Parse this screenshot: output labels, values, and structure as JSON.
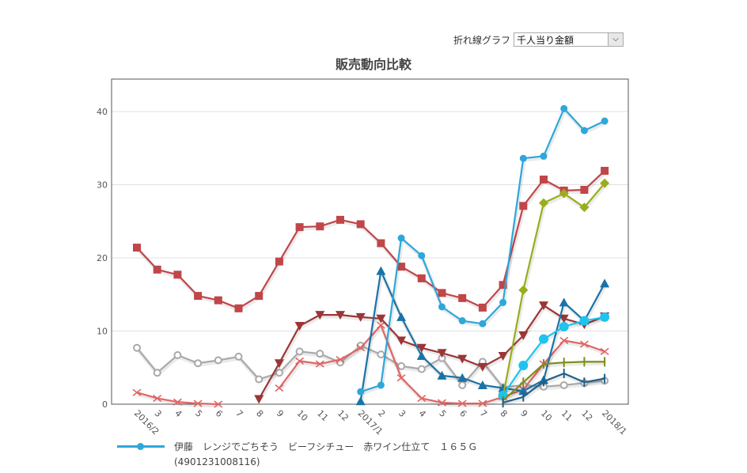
{
  "toolbar": {
    "label": "折れ線グラフ",
    "select_value": "千人当り金額",
    "arrow_icon": "chevron-down-icon"
  },
  "chart_data": {
    "type": "line",
    "title": "販売動向比較",
    "xlabel": "",
    "ylabel": "",
    "ylim": [
      0,
      44
    ],
    "yticks": [
      0,
      10,
      20,
      30,
      40
    ],
    "grid": true,
    "categories": [
      "2016/2",
      "3",
      "4",
      "5",
      "6",
      "7",
      "8",
      "9",
      "10",
      "11",
      "12",
      "2017/1",
      "2",
      "3",
      "4",
      "5",
      "6",
      "7",
      "8",
      "9",
      "10",
      "11",
      "12",
      "2018/1"
    ],
    "series": [
      {
        "name": "s-red-square",
        "color": "#c0464a",
        "marker": "square",
        "values": [
          21.4,
          18.4,
          17.7,
          14.8,
          14.2,
          13.1,
          14.8,
          19.5,
          24.2,
          24.3,
          25.2,
          24.6,
          22.0,
          18.8,
          17.2,
          15.2,
          14.5,
          13.2,
          16.3,
          27.1,
          30.7,
          29.2,
          29.3,
          31.9
        ]
      },
      {
        "name": "s-gray-open-circle",
        "color": "#a9a9a9",
        "marker": "open-circle",
        "values": [
          7.7,
          4.3,
          6.7,
          5.6,
          6.0,
          6.5,
          3.4,
          4.3,
          7.2,
          6.9,
          5.7,
          8.0,
          6.8,
          5.2,
          4.8,
          6.3,
          2.6,
          5.8,
          2.3,
          2.6,
          2.4,
          2.6,
          2.9,
          3.2
        ]
      },
      {
        "name": "s-salmon-x",
        "color": "#e06666",
        "marker": "x",
        "values": [
          1.6,
          0.8,
          0.3,
          0.1,
          0.0,
          null,
          null,
          2.2,
          5.9,
          5.5,
          6.1,
          7.7,
          10.8,
          3.6,
          0.8,
          0.2,
          0.1,
          0.1,
          1.0,
          2.0,
          5.5,
          8.7,
          8.2,
          7.2
        ]
      },
      {
        "name": "s-darkred-triangle-down",
        "color": "#9b3638",
        "marker": "triangle-down",
        "values": [
          null,
          null,
          null,
          null,
          null,
          null,
          0.7,
          5.6,
          10.7,
          12.2,
          12.2,
          11.9,
          11.7,
          8.7,
          7.7,
          7.0,
          6.2,
          5.1,
          6.6,
          9.4,
          13.5,
          11.7,
          10.9,
          12.0
        ]
      },
      {
        "name": "s-darkblue-triangle-up",
        "color": "#1a73a8",
        "marker": "triangle-up",
        "values": [
          null,
          null,
          null,
          null,
          null,
          null,
          null,
          null,
          null,
          null,
          null,
          0.4,
          18.2,
          11.9,
          6.6,
          3.9,
          3.6,
          2.6,
          2.2,
          1.8,
          3.3,
          13.9,
          11.4,
          16.5
        ]
      },
      {
        "name": "s-blue-circle",
        "color": "#2ea7db",
        "marker": "circle",
        "values": [
          null,
          null,
          null,
          null,
          null,
          null,
          null,
          null,
          null,
          null,
          null,
          1.7,
          2.6,
          22.7,
          20.3,
          13.3,
          11.4,
          11.0,
          13.9,
          33.6,
          33.9,
          40.4,
          37.4,
          38.7
        ]
      },
      {
        "name": "s-olive-diamond",
        "color": "#9aad1c",
        "marker": "diamond",
        "values": [
          null,
          null,
          null,
          null,
          null,
          null,
          null,
          null,
          null,
          null,
          null,
          null,
          null,
          null,
          null,
          null,
          null,
          null,
          1.0,
          15.6,
          27.5,
          28.8,
          26.9,
          30.2
        ]
      },
      {
        "name": "s-cyan-big-circle",
        "color": "#1fc3ee",
        "marker": "big-circle",
        "values": [
          null,
          null,
          null,
          null,
          null,
          null,
          null,
          null,
          null,
          null,
          null,
          null,
          null,
          null,
          null,
          null,
          null,
          null,
          1.2,
          5.3,
          8.9,
          10.6,
          11.4,
          11.9
        ]
      },
      {
        "name": "s-olive-dash",
        "color": "#7f8c1a",
        "marker": "dash",
        "values": [
          null,
          null,
          null,
          null,
          null,
          null,
          null,
          null,
          null,
          null,
          null,
          null,
          null,
          null,
          null,
          null,
          null,
          null,
          0.5,
          3.0,
          5.5,
          5.7,
          5.8,
          5.8
        ]
      },
      {
        "name": "s-navy-dash",
        "color": "#1f5f8b",
        "marker": "dash",
        "values": [
          null,
          null,
          null,
          null,
          null,
          null,
          null,
          null,
          null,
          null,
          null,
          null,
          null,
          null,
          null,
          null,
          null,
          null,
          0.2,
          1.0,
          3.1,
          4.2,
          3.0,
          3.5
        ]
      }
    ],
    "legend": [
      {
        "label": "伊藤　レンジでごちそう　ビーフシチュー　赤ワイン仕立て　１６５Ｇ",
        "code": "(4901231008116)",
        "color": "#2ea7db"
      }
    ],
    "legend_placement": "bottom"
  }
}
